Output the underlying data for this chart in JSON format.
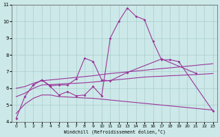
{
  "xlabel": "Windchill (Refroidissement éolien,°C)",
  "xlim": [
    -0.5,
    23.5
  ],
  "ylim": [
    4,
    11
  ],
  "yticks": [
    4,
    5,
    6,
    7,
    8,
    9,
    10,
    11
  ],
  "xticks": [
    0,
    1,
    2,
    3,
    4,
    5,
    6,
    7,
    8,
    9,
    10,
    11,
    12,
    13,
    14,
    15,
    16,
    17,
    18,
    19,
    20,
    21,
    22,
    23
  ],
  "background_color": "#cce8e8",
  "grid_color": "#aacccc",
  "line_color": "#993399",
  "l1x": [
    0,
    1,
    2,
    3,
    4,
    5,
    6,
    7,
    8,
    9,
    10,
    11,
    12,
    13,
    14,
    15,
    16,
    17,
    18,
    19,
    23
  ],
  "l1y": [
    4.2,
    5.5,
    6.2,
    6.5,
    6.1,
    5.6,
    5.8,
    5.55,
    5.6,
    6.1,
    5.55,
    9.0,
    10.0,
    10.8,
    10.3,
    10.1,
    8.8,
    7.7,
    7.7,
    7.6,
    4.65
  ],
  "l2x": [
    2,
    3,
    4,
    5,
    6,
    7,
    8,
    9,
    10,
    11,
    13,
    17,
    21
  ],
  "l2y": [
    6.2,
    6.5,
    6.15,
    6.2,
    6.2,
    6.55,
    7.8,
    7.6,
    6.5,
    6.45,
    6.95,
    7.75,
    6.9
  ],
  "l3x": [
    0,
    1,
    2,
    3,
    4,
    5,
    6,
    7,
    8,
    9,
    10,
    11,
    12,
    13,
    14,
    15,
    16,
    17,
    18,
    19,
    20,
    21,
    22,
    23
  ],
  "l3y": [
    6.0,
    6.1,
    6.3,
    6.45,
    6.5,
    6.55,
    6.6,
    6.65,
    6.7,
    6.75,
    6.82,
    6.88,
    6.93,
    6.98,
    7.03,
    7.08,
    7.13,
    7.18,
    7.22,
    7.27,
    7.32,
    7.37,
    7.42,
    7.47
  ],
  "l4x": [
    0,
    1,
    2,
    3,
    4,
    5,
    6,
    7,
    8,
    9,
    10,
    11,
    12,
    13,
    14,
    15,
    16,
    17,
    18,
    19,
    20,
    21,
    22,
    23
  ],
  "l4y": [
    5.5,
    5.7,
    6.0,
    6.2,
    6.22,
    6.25,
    6.28,
    6.3,
    6.33,
    6.37,
    6.42,
    6.47,
    6.52,
    6.57,
    6.62,
    6.67,
    6.7,
    6.72,
    6.75,
    6.77,
    6.8,
    6.82,
    6.85,
    6.88
  ],
  "l5x": [
    0,
    1,
    2,
    3,
    4,
    5,
    6,
    7,
    8,
    9,
    10,
    11,
    12,
    13,
    14,
    15,
    16,
    17,
    18,
    19,
    20,
    21,
    22,
    23
  ],
  "l5y": [
    4.5,
    5.05,
    5.4,
    5.6,
    5.6,
    5.5,
    5.48,
    5.45,
    5.42,
    5.4,
    5.35,
    5.3,
    5.25,
    5.2,
    5.15,
    5.1,
    5.05,
    5.0,
    4.95,
    4.9,
    4.85,
    4.8,
    4.75,
    4.7
  ]
}
